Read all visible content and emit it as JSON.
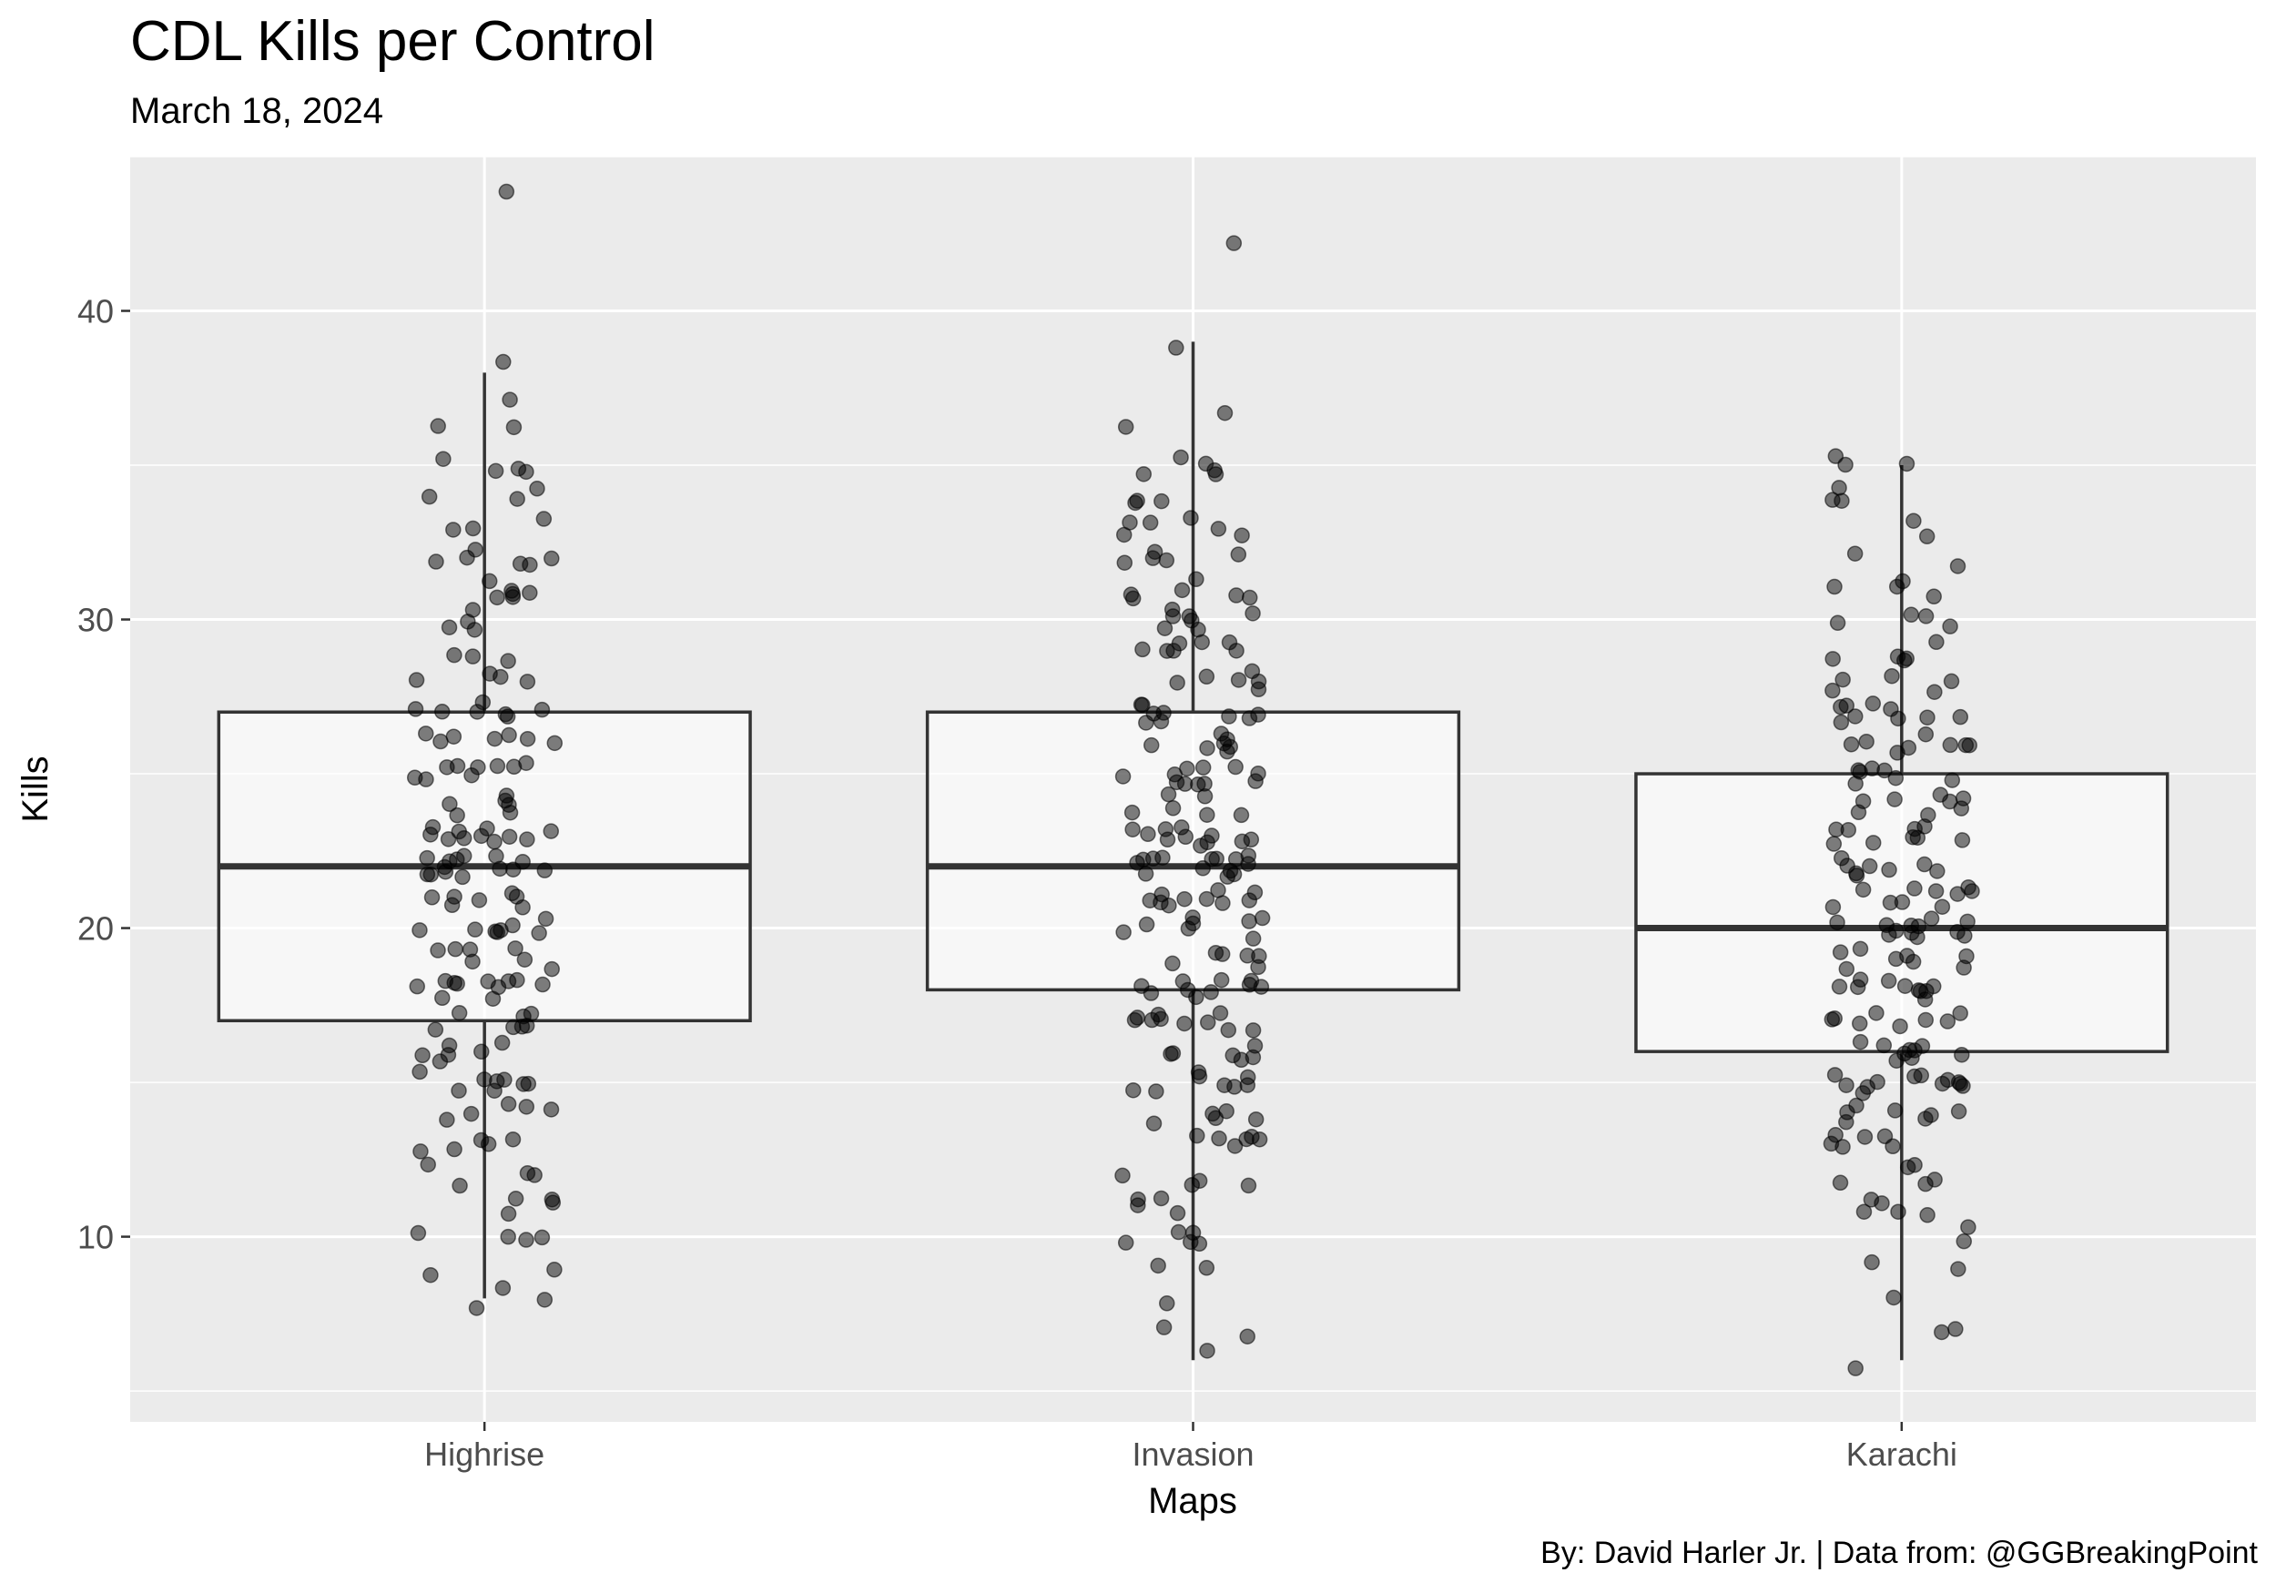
{
  "chart_data": {
    "type": "box",
    "title": "CDL Kills per Control",
    "subtitle": "March 18, 2024",
    "caption": "By: David Harler Jr. | Data from: @GGBreakingPoint",
    "xlabel": "Maps",
    "ylabel": "Kills",
    "categories": [
      "Highrise",
      "Invasion",
      "Karachi"
    ],
    "ylim": [
      4,
      45
    ],
    "y_ticks": [
      10,
      20,
      30,
      40
    ],
    "grid": true,
    "point_opacity": 0.5,
    "boxes": [
      {
        "category": "Highrise",
        "whisker_low": 8,
        "q1": 17,
        "median": 22,
        "q3": 27,
        "whisker_high": 38,
        "outliers": [
          44
        ]
      },
      {
        "category": "Invasion",
        "whisker_low": 6,
        "q1": 18,
        "median": 22,
        "q3": 27,
        "whisker_high": 39,
        "outliers": [
          42
        ]
      },
      {
        "category": "Karachi",
        "whisker_low": 6,
        "q1": 16,
        "median": 20,
        "q3": 25,
        "whisker_high": 35,
        "outliers": []
      }
    ],
    "points": {
      "Highrise": [
        44,
        38,
        37,
        36,
        36,
        35,
        35,
        35,
        35,
        34,
        34,
        34,
        33,
        33,
        33,
        32,
        32,
        32,
        32,
        32,
        32,
        31,
        31,
        31,
        31,
        31,
        31,
        30,
        30,
        30,
        30,
        29,
        29,
        29,
        28,
        28,
        28,
        28,
        27,
        27,
        27,
        27,
        27,
        27,
        27,
        26,
        26,
        26,
        26,
        26,
        26,
        26,
        25,
        25,
        25,
        25,
        25,
        25,
        25,
        25,
        25,
        24,
        24,
        24,
        24,
        24,
        24,
        23,
        23,
        23,
        23,
        23,
        23,
        23,
        23,
        23,
        23,
        23,
        22,
        22,
        22,
        22,
        22,
        22,
        22,
        22,
        22,
        22,
        22,
        22,
        22,
        22,
        21,
        21,
        21,
        21,
        21,
        21,
        21,
        20,
        20,
        20,
        20,
        20,
        20,
        20,
        20,
        19,
        19,
        19,
        19,
        19,
        19,
        19,
        18,
        18,
        18,
        18,
        18,
        18,
        18,
        18,
        18,
        18,
        18,
        17,
        17,
        17,
        17,
        17,
        17,
        17,
        16,
        16,
        16,
        16,
        16,
        16,
        15,
        15,
        15,
        15,
        15,
        15,
        15,
        15,
        14,
        14,
        14,
        14,
        14,
        13,
        13,
        13,
        13,
        13,
        12,
        12,
        12,
        12,
        11,
        11,
        11,
        11,
        10,
        10,
        10,
        10,
        9,
        9,
        8,
        8,
        8
      ],
      "Invasion": [
        42,
        39,
        37,
        36,
        35,
        35,
        35,
        35,
        35,
        34,
        34,
        34,
        33,
        33,
        33,
        33,
        33,
        33,
        32,
        32,
        32,
        32,
        32,
        31,
        31,
        31,
        31,
        31,
        31,
        30,
        30,
        30,
        30,
        30,
        30,
        30,
        29,
        29,
        29,
        29,
        29,
        29,
        29,
        28,
        28,
        28,
        28,
        28,
        28,
        27,
        27,
        27,
        27,
        27,
        27,
        27,
        27,
        27,
        26,
        26,
        26,
        26,
        26,
        26,
        26,
        25,
        25,
        25,
        25,
        25,
        25,
        25,
        25,
        25,
        25,
        25,
        24,
        24,
        24,
        24,
        24,
        24,
        23,
        23,
        23,
        23,
        23,
        23,
        23,
        23,
        23,
        23,
        23,
        22,
        22,
        22,
        22,
        22,
        22,
        22,
        22,
        22,
        22,
        22,
        22,
        22,
        22,
        21,
        21,
        21,
        21,
        21,
        21,
        21,
        21,
        21,
        21,
        20,
        20,
        20,
        20,
        20,
        20,
        20,
        20,
        19,
        19,
        19,
        19,
        19,
        19,
        18,
        18,
        18,
        18,
        18,
        18,
        18,
        18,
        18,
        18,
        17,
        17,
        17,
        17,
        17,
        17,
        17,
        17,
        17,
        17,
        16,
        16,
        16,
        16,
        16,
        16,
        15,
        15,
        15,
        15,
        15,
        15,
        15,
        15,
        14,
        14,
        14,
        14,
        14,
        13,
        13,
        13,
        13,
        13,
        13,
        12,
        12,
        12,
        12,
        11,
        11,
        11,
        11,
        10,
        10,
        10,
        10,
        10,
        9,
        9,
        8,
        7,
        7,
        6
      ],
      "Karachi": [
        35,
        35,
        35,
        34,
        34,
        34,
        33,
        33,
        32,
        32,
        31,
        31,
        31,
        31,
        30,
        30,
        30,
        30,
        29,
        29,
        29,
        29,
        29,
        28,
        28,
        28,
        28,
        28,
        27,
        27,
        27,
        27,
        27,
        27,
        27,
        27,
        27,
        26,
        26,
        26,
        26,
        26,
        26,
        26,
        26,
        25,
        25,
        25,
        25,
        25,
        25,
        25,
        24,
        24,
        24,
        24,
        24,
        24,
        24,
        24,
        23,
        23,
        23,
        23,
        23,
        23,
        23,
        23,
        23,
        22,
        22,
        22,
        22,
        22,
        22,
        22,
        22,
        21,
        21,
        21,
        21,
        21,
        21,
        21,
        21,
        21,
        21,
        20,
        20,
        20,
        20,
        20,
        20,
        20,
        20,
        20,
        20,
        20,
        20,
        19,
        19,
        19,
        19,
        19,
        19,
        19,
        19,
        18,
        18,
        18,
        18,
        18,
        18,
        18,
        18,
        18,
        18,
        17,
        17,
        17,
        17,
        17,
        17,
        17,
        17,
        16,
        16,
        16,
        16,
        16,
        16,
        16,
        16,
        16,
        15,
        15,
        15,
        15,
        15,
        15,
        15,
        15,
        15,
        15,
        15,
        15,
        14,
        14,
        14,
        14,
        14,
        14,
        14,
        13,
        13,
        13,
        13,
        13,
        13,
        12,
        12,
        12,
        12,
        12,
        11,
        11,
        11,
        11,
        11,
        10,
        10,
        9,
        9,
        8,
        7,
        7,
        6
      ]
    }
  }
}
